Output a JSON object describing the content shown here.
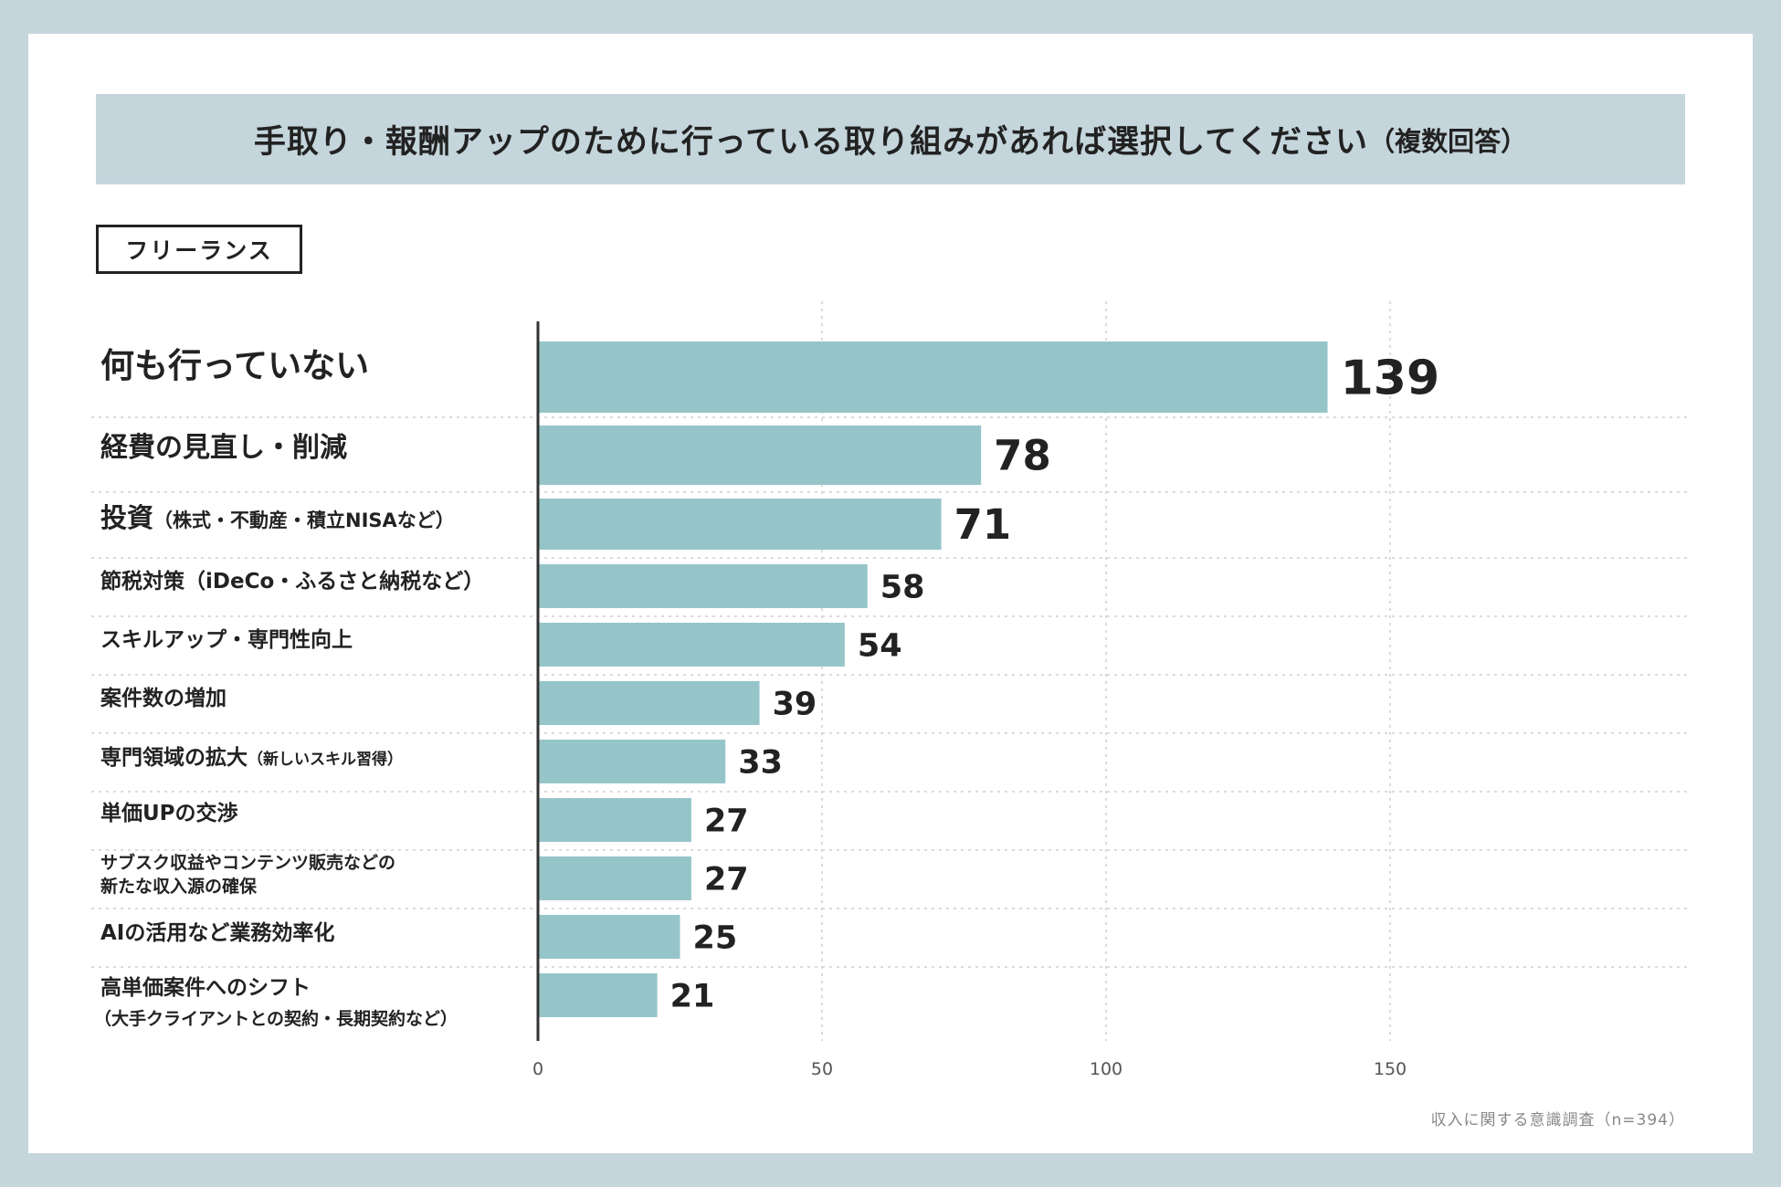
{
  "title": "手取り・報酬アップのために行っている取り組みがあれば選択してください",
  "title_note": "（複数回答）",
  "segment": "フリーランス",
  "source": "収入に関する意識調査（n=394）",
  "colors": {
    "bar": "#96c5c9",
    "background": "#c5d5dc",
    "text": "#222222"
  },
  "chart_data": {
    "type": "bar",
    "orientation": "horizontal",
    "title": "手取り・報酬アップのために行っている取り組みがあれば選択してください（複数回答）",
    "xlabel": "",
    "ylabel": "",
    "xlim": [
      0,
      200
    ],
    "xticks": [
      0,
      50,
      100,
      150
    ],
    "grid": true,
    "categories": [
      {
        "main": "何も行っていない",
        "sub": "",
        "line2": ""
      },
      {
        "main": "経費の見直し・削減",
        "sub": "",
        "line2": ""
      },
      {
        "main": "投資",
        "sub": "（株式・不動産・積立NISAなど）",
        "line2": ""
      },
      {
        "main": "節税対策（iDeCo・ふるさと納税など）",
        "sub": "",
        "line2": ""
      },
      {
        "main": "スキルアップ・専門性向上",
        "sub": "",
        "line2": ""
      },
      {
        "main": "案件数の増加",
        "sub": "",
        "line2": ""
      },
      {
        "main": "専門領域の拡大",
        "sub": "（新しいスキル習得）",
        "line2": ""
      },
      {
        "main": "単価UPの交渉",
        "sub": "",
        "line2": ""
      },
      {
        "main": "サブスク収益やコンテンツ販売などの",
        "sub": "",
        "line2": "新たな収入源の確保"
      },
      {
        "main": "AIの活用など業務効率化",
        "sub": "",
        "line2": ""
      },
      {
        "main": "高単価案件へのシフト",
        "sub": "",
        "line2": "（大手クライアントとの契約・長期契約など）"
      }
    ],
    "values": [
      139,
      78,
      71,
      58,
      54,
      39,
      33,
      27,
      27,
      25,
      21
    ]
  }
}
